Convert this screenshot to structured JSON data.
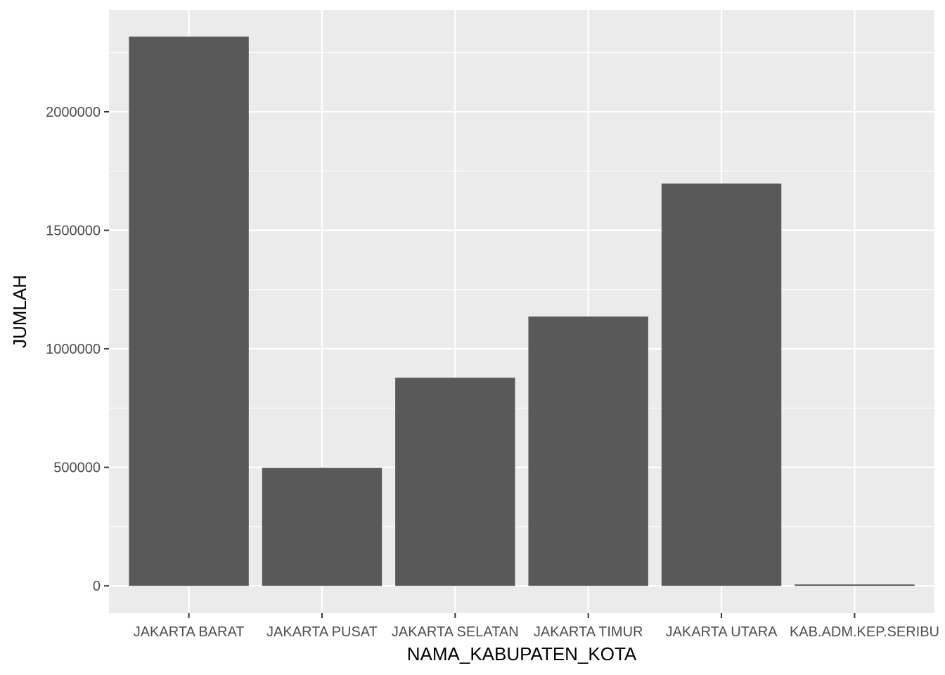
{
  "chart_data": {
    "type": "bar",
    "title": "",
    "xlabel": "NAMA_KABUPATEN_KOTA",
    "ylabel": "JUMLAH",
    "categories": [
      "JAKARTA BARAT",
      "JAKARTA PUSAT",
      "JAKARTA SELATAN",
      "JAKARTA TIMUR",
      "JAKARTA UTARA",
      "KAB.ADM.KEP.SERIBU"
    ],
    "values": [
      2317000,
      498000,
      878000,
      1136000,
      1697000,
      6000
    ],
    "ylim": [
      -115000,
      2430000
    ],
    "yticks": [
      0,
      500000,
      1000000,
      1500000,
      2000000
    ],
    "ytick_labels": [
      "0",
      "500000",
      "1000000",
      "1500000",
      "2000000"
    ],
    "grid": true,
    "legend": "none",
    "colors": {
      "panel": "#ebebeb",
      "bar": "#595959",
      "grid_major": "#ffffff",
      "tick_text": "#4d4d4d",
      "tick_mark": "#333333"
    }
  }
}
